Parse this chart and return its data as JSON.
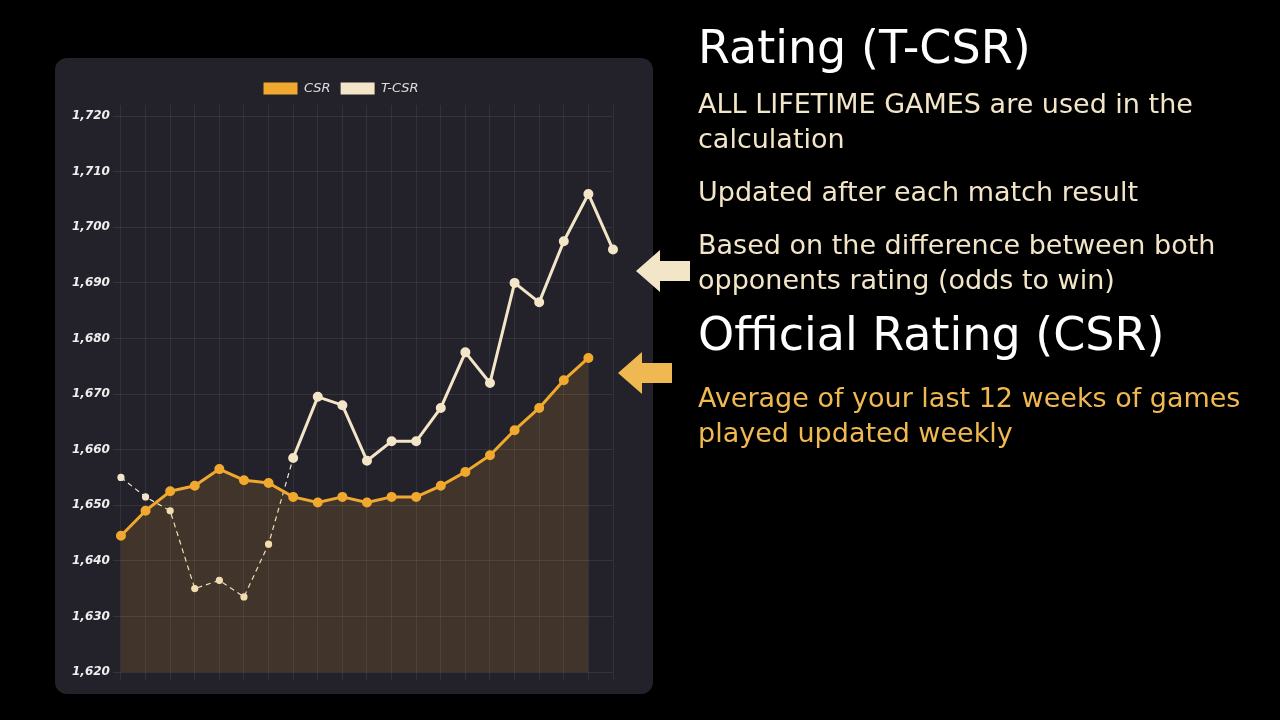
{
  "chart_data": {
    "type": "line",
    "title": "Rating (T-CSR)",
    "annotations": [
      "ALL LIFETIME GAMES are used in the calculation",
      "Updated after each match result",
      "Based on the difference between both opponents rating (odds to win)",
      "Official Rating (CSR)",
      "Average of your last 12 weeks of games played updated weekly"
    ],
    "categories": [
      null,
      null,
      null,
      null,
      null,
      null,
      null,
      null,
      null,
      null,
      null,
      null,
      null,
      null,
      null,
      null,
      null,
      null,
      null,
      null,
      null
    ],
    "series": [
      {
        "name": "CSR",
        "type": "area",
        "color": "#f0a92e",
        "values": [
          1644.5,
          1649,
          1652.5,
          1653.5,
          1656.5,
          1654.5,
          1654,
          1651.5,
          1650.5,
          1651.5,
          1650.5,
          1651.5,
          1651.5,
          1653.5,
          1656,
          1659,
          1663.5,
          1667.5,
          1672.5,
          1676.5,
          null
        ]
      },
      {
        "name": "T-CSR",
        "color": "#f3e6c8",
        "line_style": "solid",
        "values": [
          null,
          null,
          null,
          null,
          null,
          null,
          null,
          1658.5,
          1669.5,
          1668,
          1658,
          1661.5,
          1661.5,
          1667.5,
          1677.5,
          1672,
          1690,
          1686.5,
          1697.5,
          1706,
          1696
        ]
      },
      {
        "color": "#f3e6c8",
        "line_style": "dashed",
        "values": [
          1655,
          1651.5,
          1649,
          1635,
          1636.5,
          1633.5,
          1643,
          1658.5,
          null,
          null,
          null,
          null,
          null,
          null,
          null,
          null,
          null,
          null,
          null,
          null,
          null
        ]
      }
    ],
    "ylim": [
      1620,
      1722
    ],
    "yticks": [
      {
        "value": 1620,
        "label": "1,620"
      },
      {
        "value": 1630,
        "label": "1,630"
      },
      {
        "value": 1640,
        "label": "1,640"
      },
      {
        "value": 1650,
        "label": "1,650"
      },
      {
        "value": 1660,
        "label": "1,660"
      },
      {
        "value": 1670,
        "label": "1,670"
      },
      {
        "value": 1680,
        "label": "1,680"
      },
      {
        "value": 1690,
        "label": "1,690"
      },
      {
        "value": 1700,
        "label": "1,700"
      },
      {
        "value": 1710,
        "label": "1,710"
      },
      {
        "value": 1720,
        "label": "1,720"
      }
    ],
    "grid": true,
    "legend": "top",
    "marker": "circle",
    "tick_labels": "y"
  }
}
